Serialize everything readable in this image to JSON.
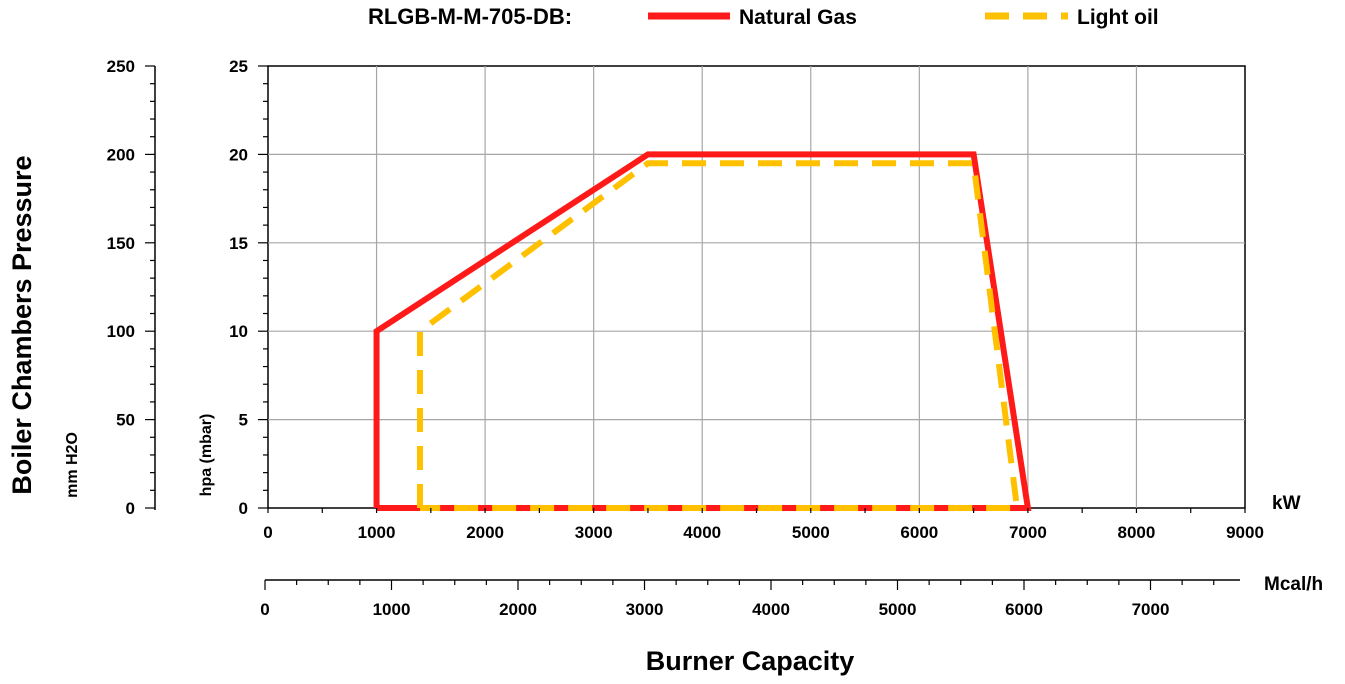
{
  "chart_data": {
    "type": "line",
    "model": "RLGB-M-M-705-DB:",
    "xlabel": "Burner Capacity",
    "x_unit": "kW",
    "x_secondary_unit": "Mcal/h",
    "ylabel": "Boiler Chambers Pressure",
    "y_left_unit": "mm H2O",
    "y_right_unit": "hpa (mbar)",
    "xlim": [
      0,
      9000
    ],
    "ylim": [
      0,
      25
    ],
    "x_ticks": [
      "0",
      "1000",
      "2000",
      "3000",
      "4000",
      "5000",
      "6000",
      "7000",
      "8000",
      "9000"
    ],
    "y_ticks": [
      "0",
      "5",
      "10",
      "15",
      "20",
      "25"
    ],
    "y_left_ticks": [
      "0",
      "50",
      "100",
      "150",
      "200",
      "250"
    ],
    "x_secondary_ticks": [
      "0",
      "1000",
      "2000",
      "3000",
      "4000",
      "5000",
      "6000",
      "7000"
    ],
    "grid": true,
    "legend_position": "top",
    "series": [
      {
        "name": "Natural Gas",
        "color": "#ff1a1a",
        "style": "solid",
        "points": [
          [
            1000,
            0
          ],
          [
            1000,
            10
          ],
          [
            3500,
            20
          ],
          [
            6500,
            20
          ],
          [
            7000,
            0
          ],
          [
            1000,
            0
          ]
        ]
      },
      {
        "name": "Light oil",
        "color": "#ffc000",
        "style": "dashed",
        "points": [
          [
            1400,
            0
          ],
          [
            1400,
            10
          ],
          [
            3500,
            19.5
          ],
          [
            6500,
            19.5
          ],
          [
            6900,
            0
          ],
          [
            1400,
            0
          ]
        ]
      }
    ]
  }
}
